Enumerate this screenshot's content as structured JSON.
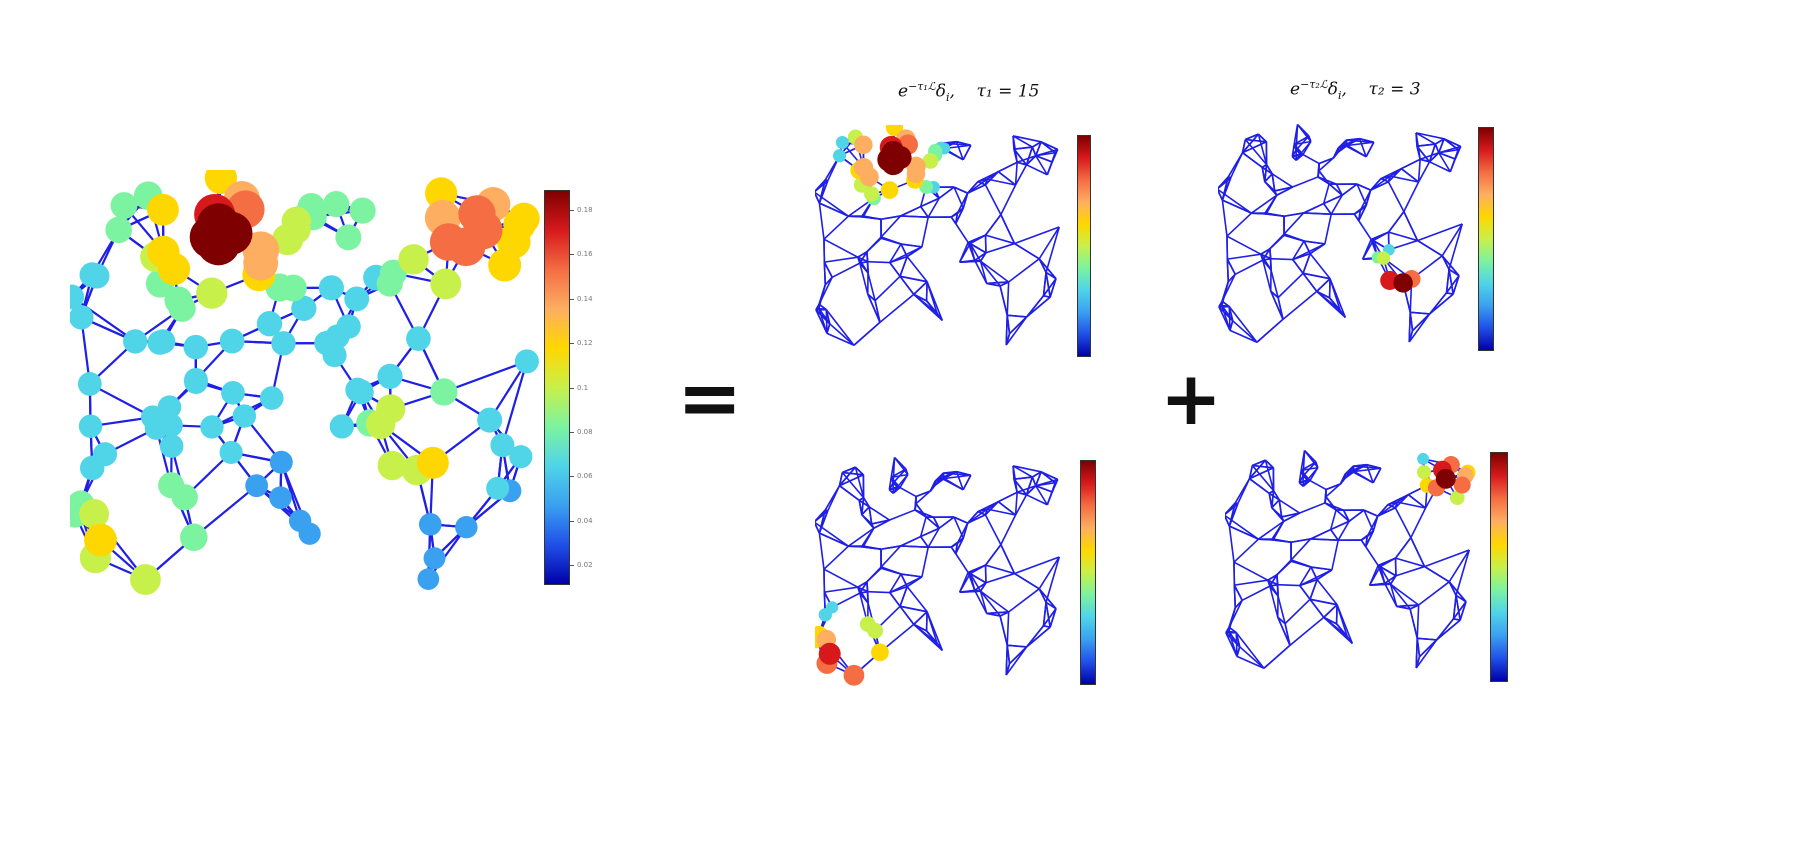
{
  "colormap": {
    "name": "jet",
    "stops": [
      "#0000a8",
      "#2050e8",
      "#3aa0f0",
      "#4fd4e8",
      "#7cf3a0",
      "#c8f04a",
      "#ffd700",
      "#fdae61",
      "#f46d43",
      "#d7191c",
      "#7f0000"
    ]
  },
  "edge_color": "#1f1fe6",
  "operators": {
    "equals": "=",
    "plus": "+"
  },
  "titles": {
    "left": {
      "base": "e",
      "exp": "−τ₁ℒ",
      "delta": "δ",
      "sub_i": "i",
      "tau": "τ₁ = 15"
    },
    "right": {
      "base": "e",
      "exp": "−τ₂ℒ",
      "delta": "δ",
      "sub_i": "i",
      "tau": "τ₂ = 3"
    }
  },
  "main_colorbar": {
    "ticks": [
      "0.18",
      "0.16",
      "0.14",
      "0.12",
      "0.1",
      "0.08",
      "0.06",
      "0.04",
      "0.02"
    ]
  },
  "panels": [
    {
      "id": "signal",
      "highlight": "top-left cluster",
      "level": 1.0
    },
    {
      "id": "tau1-top",
      "highlight": "top-left cluster",
      "level": 1.0
    },
    {
      "id": "tau2-top",
      "highlight": "lower-right cluster",
      "level": 1.0
    },
    {
      "id": "tau1-bottom",
      "highlight": "bottom-left cluster",
      "level": 1.0
    },
    {
      "id": "tau2-bottom",
      "highlight": "top-right cluster",
      "level": 1.0
    }
  ]
}
